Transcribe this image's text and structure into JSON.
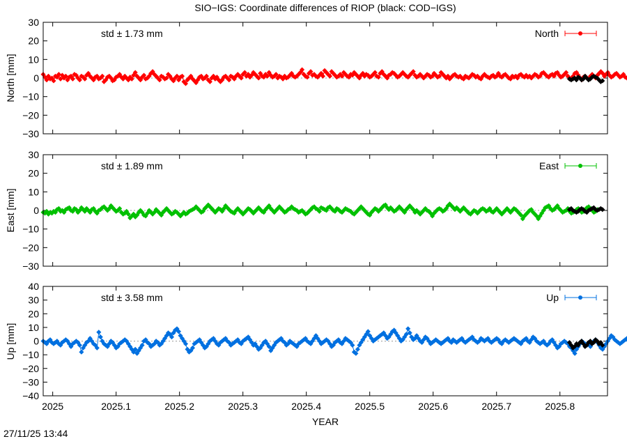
{
  "title": "SIO−IGS: Coordinate differences of RIOP (black: COD−IGS)",
  "timestamp": "27/11/25 13:44",
  "colors": {
    "comparison": "#000000",
    "grid": "#999999"
  },
  "chart_data": {
    "type": "scatter",
    "xlabel": "YEAR",
    "xlim": [
      2024.985,
      2025.875
    ],
    "x_ticks": [
      2025,
      2025.1,
      2025.2,
      2025.3,
      2025.4,
      2025.5,
      2025.6,
      2025.7,
      2025.8
    ],
    "x_tick_labels": [
      "2025",
      "2025.1",
      "2025.2",
      "2025.3",
      "2025.4",
      "2025.5",
      "2025.6",
      "2025.7",
      "2025.8"
    ],
    "x_start": 2024.985,
    "x_step": 0.00274,
    "comparison_x_start": 2025.815,
    "comparison_x_step": 0.00274,
    "panels": [
      {
        "name": "North",
        "ylabel": "North [mm]",
        "std_label": "std ± 1.73 mm",
        "color": "#ff0000",
        "ylim": [
          -30,
          30
        ],
        "y_ticks": [
          -30,
          -20,
          -10,
          0,
          10,
          20,
          30
        ],
        "y_tick_labels": [
          "−30",
          "−20",
          "−10",
          "0",
          "10",
          "20",
          "30"
        ],
        "values": [
          2.0,
          0.5,
          -1.0,
          1.0,
          -0.5,
          0.0,
          -1.5,
          1.0,
          0.5,
          2.0,
          -0.5,
          1.5,
          0.0,
          1.0,
          -1.0,
          0.5,
          1.0,
          -0.5,
          2.0,
          1.5,
          0.0,
          -1.0,
          1.0,
          0.5,
          -0.5,
          1.5,
          2.5,
          1.0,
          0.0,
          -1.0,
          0.5,
          1.0,
          -0.5,
          0.0,
          1.0,
          -2.0,
          -1.0,
          0.5,
          1.0,
          0.0,
          -1.5,
          -1.0,
          0.5,
          1.0,
          2.0,
          0.5,
          -0.5,
          1.0,
          0.0,
          -1.0,
          0.5,
          -0.5,
          1.5,
          3.0,
          1.0,
          0.0,
          -1.0,
          0.5,
          1.5,
          -0.5,
          0.0,
          1.0,
          2.5,
          3.5,
          2.0,
          1.0,
          0.0,
          -1.0,
          1.0,
          0.5,
          -0.5,
          0.0,
          2.0,
          1.0,
          -0.5,
          -1.5,
          0.0,
          1.0,
          -1.0,
          0.5,
          1.0,
          -2.0,
          -3.0,
          -1.0,
          0.0,
          1.0,
          -0.5,
          -1.5,
          -2.5,
          -1.0,
          0.5,
          1.0,
          -0.5,
          0.0,
          1.0,
          -1.0,
          -2.0,
          0.0,
          1.0,
          -0.5,
          0.5,
          -1.0,
          -2.0,
          -1.0,
          0.5,
          1.0,
          0.0,
          -1.0,
          1.0,
          0.5,
          -0.5,
          1.0,
          2.0,
          1.0,
          0.0,
          2.0,
          3.0,
          1.0,
          2.0,
          0.5,
          1.5,
          3.0,
          2.0,
          1.0,
          0.0,
          2.5,
          1.0,
          0.5,
          2.0,
          1.0,
          3.0,
          1.5,
          0.5,
          1.0,
          2.0,
          0.0,
          1.0,
          0.5,
          -0.5,
          1.0,
          0.0,
          0.5,
          1.5,
          2.5,
          1.0,
          0.5,
          1.0,
          2.0,
          3.0,
          4.5,
          2.0,
          1.0,
          0.5,
          2.5,
          3.5,
          1.5,
          2.0,
          1.0,
          0.5,
          1.5,
          2.5,
          1.0,
          4.0,
          3.0,
          2.0,
          1.0,
          3.5,
          2.5,
          1.5,
          0.5,
          1.0,
          2.0,
          1.0,
          3.0,
          2.0,
          1.0,
          0.5,
          2.0,
          1.5,
          3.0,
          2.0,
          1.0,
          0.0,
          1.5,
          2.5,
          1.0,
          2.0,
          1.5,
          0.5,
          1.0,
          2.0,
          3.0,
          1.0,
          0.5,
          2.5,
          3.5,
          2.0,
          1.0,
          0.0,
          1.5,
          2.0,
          3.0,
          2.5,
          1.5,
          0.5,
          1.0,
          2.0,
          3.0,
          2.0,
          1.0,
          0.5,
          1.5,
          2.5,
          3.5,
          1.5,
          0.5,
          1.0,
          2.0,
          1.0,
          0.0,
          1.0,
          2.0,
          1.5,
          0.5,
          1.0,
          2.5,
          1.5,
          0.5,
          1.0,
          3.0,
          2.0,
          1.0,
          0.0,
          1.0,
          -0.5,
          0.5,
          1.5,
          2.0,
          1.0,
          0.5,
          1.0,
          0.0,
          -0.5,
          1.0,
          0.5,
          0.0,
          1.0,
          2.0,
          1.5,
          0.5,
          1.0,
          0.0,
          -0.5,
          1.0,
          2.0,
          1.0,
          0.5,
          0.0,
          1.0,
          1.5,
          0.5,
          1.0,
          2.5,
          1.0,
          0.5,
          1.5,
          2.0,
          1.0,
          0.0,
          -0.5,
          1.0,
          0.5,
          1.0,
          0.0,
          1.5,
          2.0,
          1.0,
          0.5,
          1.5,
          0.5,
          1.0,
          0.0,
          1.0,
          2.0,
          1.5,
          0.5,
          1.0,
          2.5,
          3.0,
          2.0,
          1.0,
          0.5,
          1.5,
          2.0,
          1.0,
          2.5,
          3.0,
          1.5,
          0.5,
          1.0,
          2.0,
          3.0,
          1.0,
          -0.5,
          0.0,
          1.0,
          2.5,
          3.0,
          1.5,
          0.0,
          -1.0,
          0.5,
          1.0,
          0.0,
          -0.5,
          1.0,
          2.0,
          1.0,
          0.0,
          1.5,
          2.5,
          3.5,
          2.5,
          1.0,
          2.0,
          3.0,
          1.5,
          0.5,
          1.0,
          2.0,
          2.5,
          1.5,
          0.5,
          1.0,
          2.0,
          0.5,
          0.0,
          1.0,
          1.5,
          2.5,
          3.0,
          1.0,
          0.5,
          1.0,
          2.0
        ],
        "comparison_values": [
          -0.5,
          -1.0,
          -0.5,
          0.0,
          -1.0,
          0.5,
          0.0,
          -1.0,
          -0.5,
          1.0,
          0.0,
          -1.0,
          -0.5,
          0.5,
          1.0,
          0.5,
          0.0,
          -1.0,
          -2.0,
          -1.5
        ]
      },
      {
        "name": "East",
        "ylabel": "East [mm]",
        "std_label": "std ± 1.89 mm",
        "color": "#00c000",
        "ylim": [
          -30,
          30
        ],
        "y_ticks": [
          -30,
          -20,
          -10,
          0,
          10,
          20,
          30
        ],
        "y_tick_labels": [
          "−30",
          "−20",
          "−10",
          "0",
          "10",
          "20",
          "30"
        ],
        "values": [
          -1.0,
          -1.5,
          -0.5,
          -2.0,
          -1.0,
          -1.5,
          -0.5,
          -1.0,
          0.5,
          1.0,
          -0.5,
          0.0,
          -1.0,
          0.5,
          1.0,
          1.5,
          0.0,
          -0.5,
          1.0,
          0.5,
          -1.0,
          0.0,
          1.5,
          0.5,
          -0.5,
          1.0,
          0.0,
          -1.0,
          0.5,
          1.0,
          -0.5,
          -1.5,
          0.0,
          0.5,
          1.5,
          2.0,
          1.0,
          0.0,
          1.0,
          2.5,
          1.5,
          0.5,
          -0.5,
          0.0,
          1.0,
          -1.0,
          -2.0,
          -1.5,
          -0.5,
          -2.0,
          -4.0,
          -3.0,
          -2.0,
          -3.5,
          -2.5,
          -1.0,
          0.0,
          -1.0,
          -2.5,
          -3.0,
          -1.5,
          0.0,
          -1.0,
          -2.0,
          -1.0,
          0.5,
          -0.5,
          -1.5,
          -2.5,
          -1.0,
          0.0,
          1.0,
          0.0,
          -1.0,
          -2.0,
          -1.5,
          -0.5,
          -1.0,
          -2.0,
          -3.0,
          -2.0,
          -1.0,
          -2.0,
          -1.5,
          -0.5,
          0.0,
          0.5,
          1.0,
          2.0,
          1.0,
          0.0,
          -1.0,
          -0.5,
          1.0,
          2.0,
          3.0,
          2.0,
          1.0,
          0.0,
          -1.0,
          0.0,
          1.0,
          0.5,
          -0.5,
          1.0,
          2.5,
          1.5,
          0.5,
          -0.5,
          -1.0,
          -1.5,
          0.0,
          1.0,
          0.0,
          -1.0,
          -2.0,
          -1.0,
          0.0,
          1.0,
          0.5,
          -0.5,
          -1.5,
          -0.5,
          0.5,
          1.5,
          0.5,
          -0.5,
          -1.0,
          0.5,
          1.5,
          2.5,
          1.0,
          0.0,
          -1.0,
          0.0,
          1.0,
          2.0,
          1.0,
          0.0,
          -1.0,
          -0.5,
          0.5,
          1.0,
          2.0,
          1.0,
          0.5,
          0.0,
          -1.0,
          -0.5,
          0.0,
          -1.0,
          -2.0,
          -1.5,
          -0.5,
          0.5,
          1.5,
          2.0,
          1.0,
          0.5,
          -0.5,
          1.5,
          1.0,
          0.5,
          0.0,
          1.5,
          2.0,
          1.0,
          0.0,
          -0.5,
          1.0,
          0.5,
          -0.5,
          -1.0,
          0.0,
          1.0,
          0.5,
          0.0,
          -0.5,
          -1.5,
          -2.0,
          -1.0,
          0.0,
          1.0,
          2.0,
          1.0,
          0.0,
          -1.0,
          -2.0,
          -2.5,
          -1.0,
          0.0,
          1.0,
          0.5,
          -0.5,
          0.5,
          1.5,
          2.5,
          3.0,
          1.5,
          0.5,
          1.5,
          0.5,
          -0.5,
          0.0,
          1.0,
          2.0,
          1.0,
          0.0,
          -1.0,
          0.5,
          1.5,
          2.5,
          1.5,
          0.5,
          -1.0,
          0.0,
          -1.0,
          -2.0,
          -1.0,
          0.0,
          1.0,
          0.0,
          -0.5,
          -1.5,
          -3.0,
          -1.5,
          -0.5,
          0.5,
          1.0,
          0.5,
          -0.5,
          0.0,
          1.0,
          2.5,
          3.5,
          2.5,
          1.5,
          0.5,
          1.5,
          0.5,
          -0.5,
          0.5,
          1.5,
          0.5,
          -0.5,
          -1.5,
          -2.0,
          -1.0,
          0.0,
          -0.5,
          -1.5,
          -0.5,
          0.5,
          1.0,
          0.5,
          -0.5,
          0.0,
          1.0,
          -0.5,
          -1.0,
          0.0,
          1.0,
          0.0,
          -1.0,
          -2.0,
          -1.0,
          0.0,
          1.0,
          0.0,
          -1.0,
          0.0,
          1.0,
          0.5,
          -0.5,
          -1.5,
          -2.5,
          -4.5,
          -3.0,
          -2.0,
          -1.0,
          0.0,
          0.5,
          -1.0,
          -2.0,
          -3.0,
          -4.5,
          -3.0,
          -1.5,
          0.0,
          1.5,
          2.0,
          2.5,
          1.0,
          0.0,
          0.5,
          1.5,
          2.5,
          1.0,
          0.0,
          -1.0,
          -0.5,
          0.0,
          1.0,
          -0.5,
          -1.5,
          -1.0,
          -0.5,
          0.5,
          1.0,
          0.0,
          -1.0,
          -0.5,
          0.5,
          1.5,
          2.0,
          1.0,
          0.0,
          -1.0,
          -0.5,
          0.5
        ],
        "comparison_values": [
          0.5,
          1.0,
          0.0,
          -0.5,
          -1.0,
          -0.5,
          0.5,
          1.0,
          0.5,
          -0.5,
          -1.0,
          0.0,
          0.5,
          1.0,
          1.5,
          0.5,
          0.0,
          0.5,
          1.0,
          0.5
        ]
      },
      {
        "name": "Up",
        "ylabel": "Up [mm]",
        "std_label": "std ± 3.58 mm",
        "color": "#0070e0",
        "ylim": [
          -40,
          40
        ],
        "y_ticks": [
          -40,
          -30,
          -20,
          -10,
          0,
          10,
          20,
          30,
          40
        ],
        "y_tick_labels": [
          "−40",
          "−30",
          "−20",
          "−10",
          "0",
          "10",
          "20",
          "30",
          "40"
        ],
        "values": [
          0.0,
          -1.0,
          -2.0,
          0.0,
          1.0,
          -1.0,
          -2.0,
          -1.0,
          0.0,
          -2.0,
          -3.0,
          -1.0,
          0.0,
          1.0,
          0.0,
          -2.0,
          -4.0,
          -2.0,
          -1.0,
          0.0,
          -1.0,
          -3.0,
          -8.0,
          -5.0,
          -3.0,
          -1.0,
          0.0,
          2.0,
          0.0,
          -2.0,
          -3.0,
          -5.0,
          6.5,
          3.0,
          0.0,
          -2.0,
          -3.0,
          -4.0,
          -2.0,
          0.0,
          -1.0,
          -3.0,
          -5.0,
          -4.0,
          -2.0,
          -1.0,
          0.0,
          1.0,
          0.0,
          -2.0,
          -4.0,
          -6.0,
          -8.0,
          -6.0,
          -9.0,
          -7.0,
          -5.0,
          -3.0,
          0.0,
          1.0,
          -1.0,
          -2.0,
          -4.0,
          -3.0,
          -2.0,
          0.0,
          -1.0,
          -3.0,
          -2.0,
          0.0,
          2.0,
          4.0,
          6.0,
          5.0,
          3.0,
          6.0,
          8.0,
          9.0,
          7.0,
          4.0,
          2.0,
          0.0,
          -2.0,
          -6.0,
          -8.0,
          -7.0,
          -5.0,
          -2.0,
          -1.0,
          0.0,
          1.0,
          -1.0,
          -3.0,
          -5.0,
          -4.0,
          -2.0,
          0.0,
          1.0,
          2.0,
          0.0,
          -2.0,
          -3.0,
          -1.0,
          0.0,
          1.0,
          2.0,
          0.0,
          -1.0,
          -3.0,
          -2.0,
          -1.0,
          0.0,
          1.0,
          -1.0,
          -2.0,
          0.0,
          1.0,
          2.0,
          3.0,
          1.0,
          -1.0,
          -3.0,
          -2.0,
          -4.0,
          -6.0,
          -5.0,
          -3.0,
          -1.0,
          0.0,
          -2.0,
          -4.0,
          -7.0,
          -5.0,
          -3.0,
          -1.0,
          0.0,
          1.0,
          2.0,
          0.0,
          -1.0,
          -3.0,
          -2.0,
          0.0,
          -1.0,
          -2.0,
          -3.0,
          -4.0,
          -2.0,
          -1.0,
          0.0,
          1.0,
          2.0,
          0.0,
          -1.0,
          -2.0,
          0.0,
          2.0,
          4.0,
          2.0,
          0.0,
          -2.0,
          -1.0,
          0.0,
          1.0,
          0.0,
          -2.0,
          -4.0,
          -3.0,
          -1.0,
          0.0,
          1.0,
          -1.0,
          -2.0,
          0.0,
          2.0,
          1.0,
          0.0,
          -1.0,
          -3.0,
          -8.0,
          -9.0,
          -6.0,
          -3.0,
          -1.0,
          1.0,
          3.0,
          5.0,
          7.0,
          4.0,
          2.0,
          0.0,
          1.0,
          2.0,
          3.0,
          4.0,
          5.0,
          6.0,
          4.0,
          2.0,
          3.0,
          5.0,
          7.0,
          8.0,
          6.0,
          4.0,
          2.0,
          0.0,
          1.0,
          3.0,
          5.0,
          9.0,
          6.0,
          3.0,
          1.0,
          2.0,
          4.0,
          2.0,
          0.0,
          -1.0,
          1.0,
          3.0,
          2.0,
          0.0,
          -2.0,
          -1.0,
          0.0,
          1.0,
          0.0,
          -1.0,
          -2.0,
          -1.0,
          0.0,
          1.0,
          2.0,
          0.0,
          -1.0,
          1.0,
          0.0,
          -1.0,
          0.0,
          1.0,
          2.0,
          0.0,
          -1.0,
          0.0,
          1.0,
          2.0,
          3.0,
          1.0,
          0.0,
          -1.0,
          0.0,
          2.0,
          1.0,
          0.0,
          1.0,
          2.0,
          0.0,
          -1.0,
          0.0,
          1.0,
          2.0,
          1.0,
          -1.0,
          -2.0,
          0.0,
          1.0,
          0.0,
          -1.0,
          0.0,
          1.0,
          2.0,
          1.0,
          0.0,
          -1.0,
          -2.0,
          0.0,
          1.0,
          2.0,
          0.0,
          -1.0,
          1.0,
          3.0,
          2.0,
          0.0,
          -1.0,
          -2.0,
          -1.0,
          0.0,
          -2.0,
          -3.0,
          -2.0,
          0.0,
          1.0,
          -1.0,
          -3.0,
          -5.0,
          -4.0,
          -2.0,
          -1.0,
          0.0,
          -1.0,
          -2.0,
          -4.0,
          -5.0,
          -7.0,
          -9.0,
          -6.0,
          -4.0,
          -2.0,
          0.0,
          -1.0,
          -2.0,
          -3.0,
          -2.0,
          -4.0,
          -2.0,
          0.0,
          1.0,
          -1.0,
          -3.0,
          -5.0,
          -6.0,
          -4.0,
          -2.0,
          0.0,
          2.0,
          4.0,
          3.0,
          1.0,
          0.0,
          -1.0,
          -2.0,
          -1.0,
          0.0,
          1.0,
          2.0,
          0.0
        ],
        "comparison_values": [
          -1.0,
          -3.0,
          -5.0,
          -4.0,
          -2.0,
          -3.0,
          -1.0,
          0.0,
          -2.0,
          -4.0,
          -3.0,
          -1.0,
          0.0,
          -2.0,
          -1.0,
          1.0,
          0.0,
          -2.0,
          -1.0,
          -3.0
        ]
      }
    ]
  }
}
